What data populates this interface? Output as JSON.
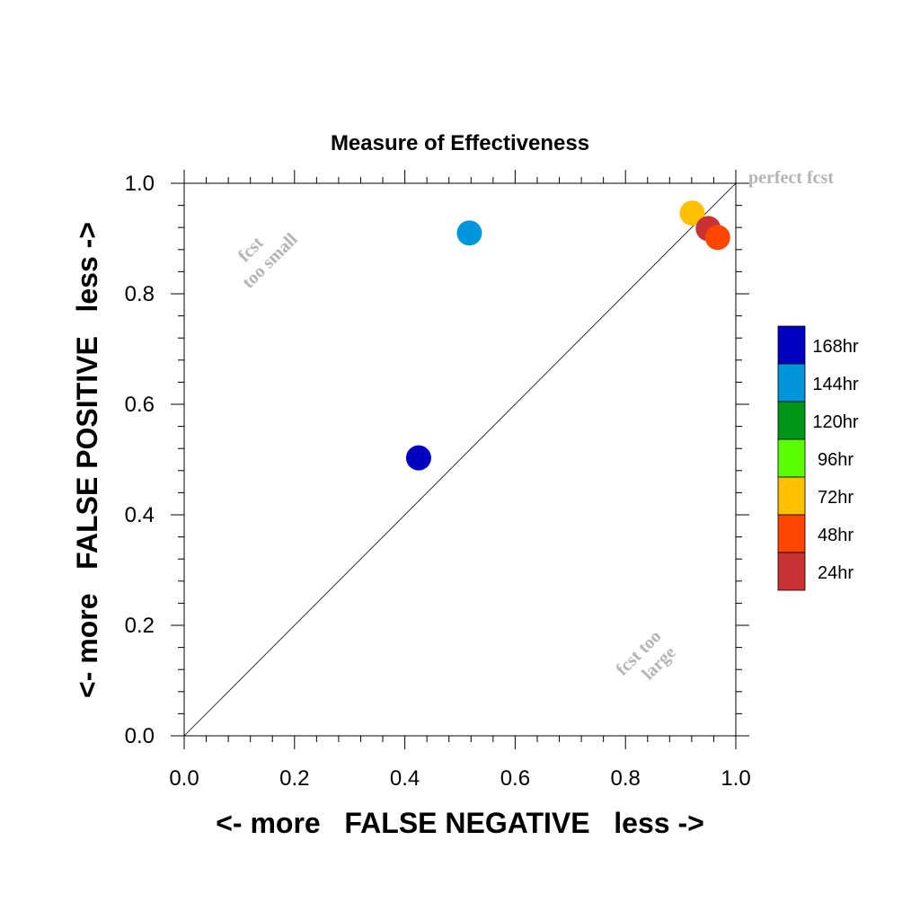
{
  "chart_data": {
    "type": "scatter",
    "title": "Measure of Effectiveness",
    "xlabel": "<- more   FALSE NEGATIVE   less ->",
    "ylabel": "<- more   FALSE POSITIVE   less ->",
    "xlim": [
      0,
      1
    ],
    "ylim": [
      0,
      1
    ],
    "x_ticks": [
      "0.0",
      "0.2",
      "0.4",
      "0.6",
      "0.8",
      "1.0"
    ],
    "y_ticks": [
      "0.0",
      "0.2",
      "0.4",
      "0.6",
      "0.8",
      "1.0"
    ],
    "grid": false,
    "reference_line": "diagonal from (0,0) to (1,1)",
    "annotations": {
      "perfect": "perfect fcst",
      "too_small": [
        "fcst",
        "too small"
      ],
      "too_large": [
        "fcst too",
        "large"
      ]
    },
    "legend": {
      "placement": "right",
      "entries": [
        {
          "label": "168hr",
          "color": "#0000c0"
        },
        {
          "label": "144hr",
          "color": "#0096dc"
        },
        {
          "label": "120hr",
          "color": "#009619"
        },
        {
          "label": "96hr",
          "color": "#5aff00"
        },
        {
          "label": "72hr",
          "color": "#ffc000"
        },
        {
          "label": "48hr",
          "color": "#ff4600"
        },
        {
          "label": "24hr",
          "color": "#c83232"
        }
      ]
    },
    "points": [
      {
        "series": "168hr",
        "x": 0.425,
        "y": 0.503,
        "color": "#0000c0"
      },
      {
        "series": "144hr",
        "x": 0.517,
        "y": 0.91,
        "color": "#0096dc"
      },
      {
        "series": "72hr",
        "x": 0.921,
        "y": 0.946,
        "color": "#ffc000"
      },
      {
        "series": "24hr",
        "x": 0.95,
        "y": 0.918,
        "color": "#c83232"
      },
      {
        "series": "48hr",
        "x": 0.967,
        "y": 0.902,
        "color": "#ff4600"
      }
    ]
  }
}
